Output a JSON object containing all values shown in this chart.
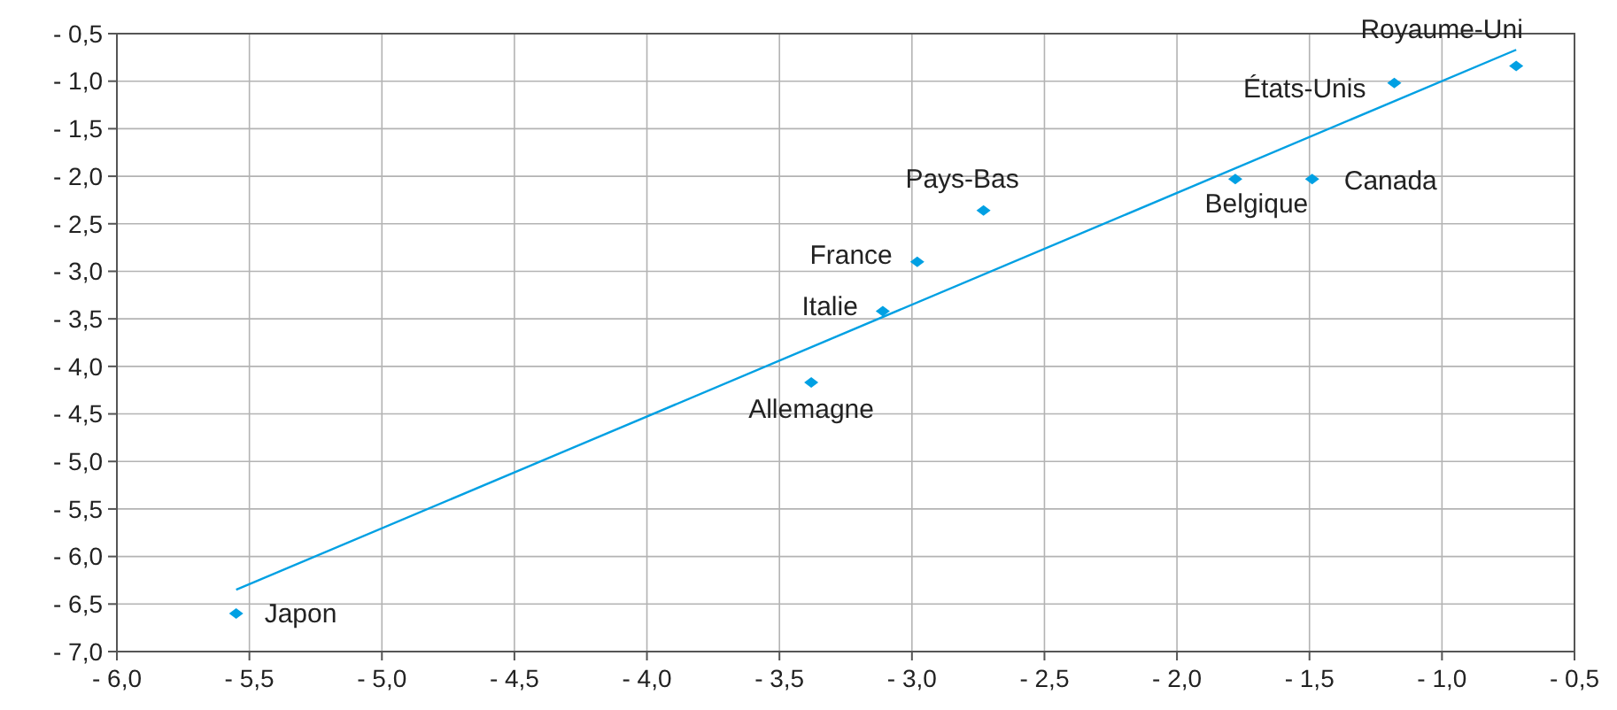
{
  "chart_data": {
    "type": "scatter",
    "grid": true,
    "xlim": [
      -6.0,
      -0.5
    ],
    "ylim": [
      -7.0,
      -0.5
    ],
    "xticks": [
      {
        "value": -6.0,
        "label": "- 6,0"
      },
      {
        "value": -5.5,
        "label": "- 5,5"
      },
      {
        "value": -5.0,
        "label": "- 5,0"
      },
      {
        "value": -4.5,
        "label": "- 4,5"
      },
      {
        "value": -4.0,
        "label": "- 4,0"
      },
      {
        "value": -3.5,
        "label": "- 3,5"
      },
      {
        "value": -3.0,
        "label": "- 3,0"
      },
      {
        "value": -2.5,
        "label": "- 2,5"
      },
      {
        "value": -2.0,
        "label": "- 2,0"
      },
      {
        "value": -1.5,
        "label": "- 1,5"
      },
      {
        "value": -1.0,
        "label": "- 1,0"
      },
      {
        "value": -0.5,
        "label": "- 0,5"
      }
    ],
    "yticks": [
      {
        "value": -0.5,
        "label": "- 0,5"
      },
      {
        "value": -1.0,
        "label": "- 1,0"
      },
      {
        "value": -1.5,
        "label": "- 1,5"
      },
      {
        "value": -2.0,
        "label": "- 2,0"
      },
      {
        "value": -2.5,
        "label": "- 2,5"
      },
      {
        "value": -3.0,
        "label": "- 3,0"
      },
      {
        "value": -3.5,
        "label": "- 3,5"
      },
      {
        "value": -4.0,
        "label": "- 4,0"
      },
      {
        "value": -4.5,
        "label": "- 4,5"
      },
      {
        "value": -5.0,
        "label": "- 5,0"
      },
      {
        "value": -5.5,
        "label": "- 5,5"
      },
      {
        "value": -6.0,
        "label": "- 6,0"
      },
      {
        "value": -6.5,
        "label": "- 6,5"
      },
      {
        "value": -7.0,
        "label": "- 7,0"
      }
    ],
    "series": [
      {
        "marker": "diamond",
        "color": "#00a0e3",
        "x": [
          -5.55,
          -3.38,
          -3.11,
          -2.98,
          -2.73,
          -1.78,
          -1.49,
          -1.18,
          -0.72
        ],
        "values": [
          -6.6,
          -4.17,
          -3.42,
          -2.9,
          -2.36,
          -2.03,
          -2.03,
          -1.02,
          -0.84
        ]
      },
      {
        "type": "line",
        "color": "#00a0e3",
        "x": [
          -5.55,
          -0.72
        ],
        "values": [
          -6.35,
          -0.67
        ]
      }
    ],
    "annotations": [
      {
        "text": "Japon",
        "x": -5.55,
        "y": -6.6
      },
      {
        "text": "Allemagne",
        "x": -3.38,
        "y": -4.17
      },
      {
        "text": "Italie",
        "x": -3.11,
        "y": -3.42
      },
      {
        "text": "France",
        "x": -2.98,
        "y": -2.9
      },
      {
        "text": "Pays-Bas",
        "x": -2.73,
        "y": -2.36
      },
      {
        "text": "Belgique",
        "x": -1.78,
        "y": -2.03
      },
      {
        "text": "Canada",
        "x": -1.49,
        "y": -2.03
      },
      {
        "text": "États-Unis",
        "x": -1.18,
        "y": -1.02
      },
      {
        "text": "Royaume-Uni",
        "x": -0.72,
        "y": -0.84
      }
    ]
  }
}
